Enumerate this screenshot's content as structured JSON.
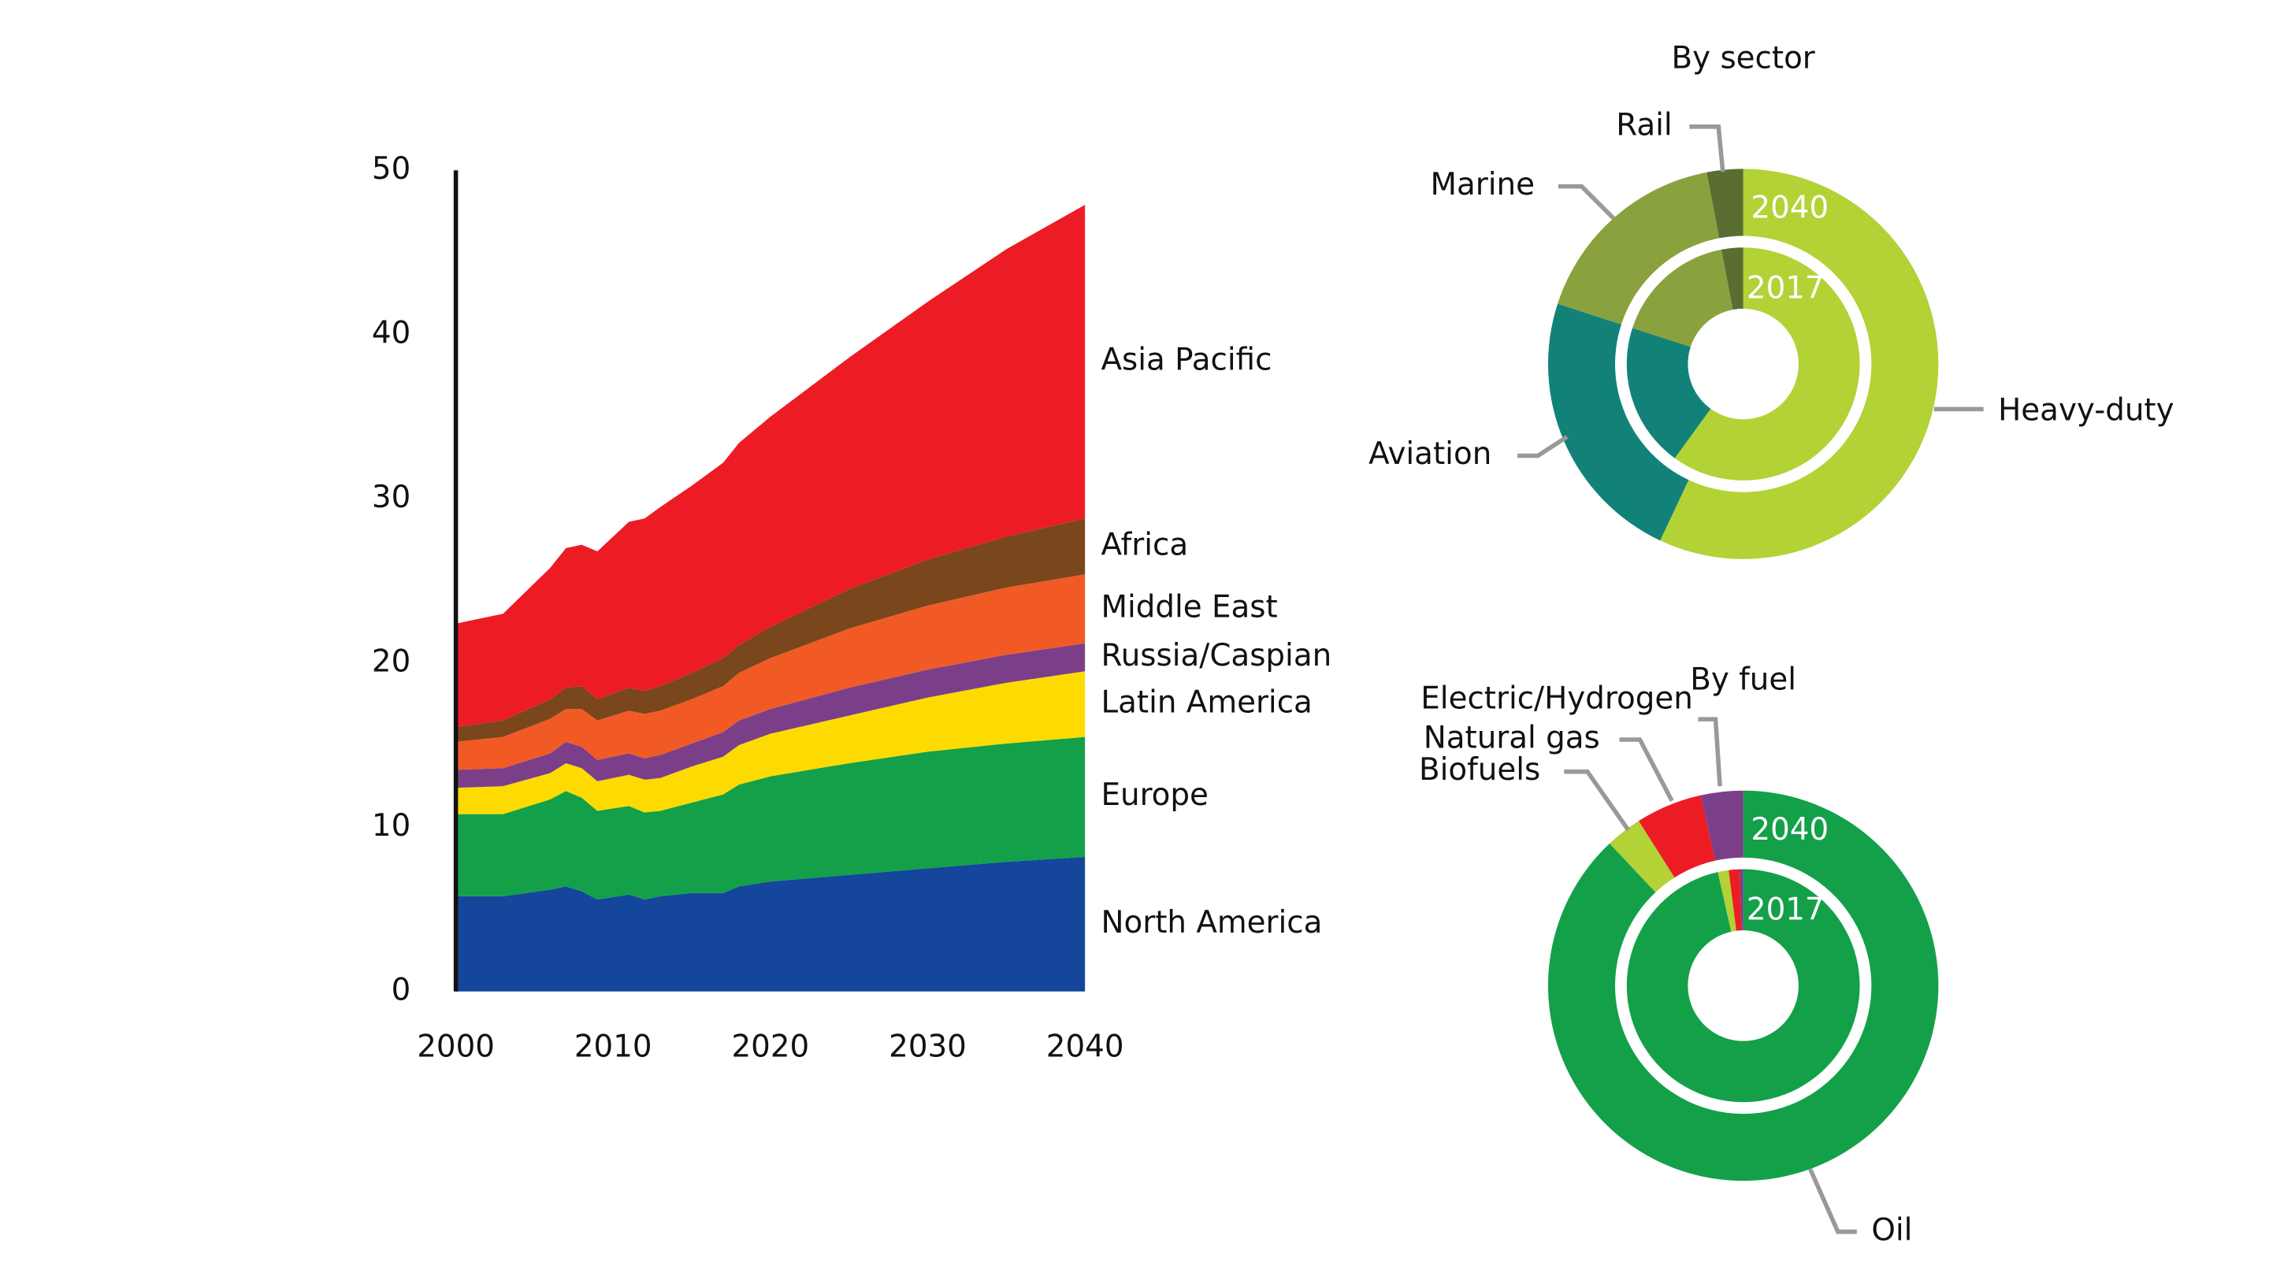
{
  "chart_data": [
    {
      "type": "stacked-area",
      "x": [
        2000,
        2003,
        2006,
        2007,
        2008,
        2009,
        2011,
        2012,
        2013,
        2015,
        2017,
        2018,
        2020,
        2025,
        2030,
        2035,
        2040
      ],
      "xlim": [
        2000,
        2040
      ],
      "xticks": [
        2000,
        2010,
        2020,
        2030,
        2040
      ],
      "ylim": [
        0,
        50
      ],
      "yticks": [
        0,
        10,
        20,
        30,
        40,
        50
      ],
      "series": [
        {
          "name": "North America",
          "color": "#14479b",
          "values": [
            5.8,
            5.8,
            6.2,
            6.4,
            6.1,
            5.6,
            5.9,
            5.6,
            5.8,
            6.0,
            6.0,
            6.4,
            6.7,
            7.1,
            7.5,
            7.9,
            8.2
          ]
        },
        {
          "name": "Europe",
          "color": "#13a049",
          "values": [
            5.0,
            5.0,
            5.5,
            5.8,
            5.7,
            5.4,
            5.4,
            5.3,
            5.2,
            5.5,
            6.0,
            6.2,
            6.4,
            6.8,
            7.1,
            7.2,
            7.3
          ]
        },
        {
          "name": "Latin America",
          "color": "#fddb00",
          "values": [
            1.6,
            1.7,
            1.6,
            1.7,
            1.8,
            1.8,
            1.9,
            2.0,
            2.0,
            2.2,
            2.3,
            2.4,
            2.6,
            2.9,
            3.3,
            3.7,
            4.0
          ]
        },
        {
          "name": "Russia/Caspian",
          "color": "#7b3f8a",
          "values": [
            1.1,
            1.1,
            1.2,
            1.3,
            1.3,
            1.3,
            1.3,
            1.3,
            1.4,
            1.4,
            1.5,
            1.5,
            1.5,
            1.7,
            1.7,
            1.7,
            1.7
          ]
        },
        {
          "name": "Middle East",
          "color": "#f15a24",
          "values": [
            1.7,
            1.9,
            2.1,
            2.0,
            2.3,
            2.4,
            2.6,
            2.7,
            2.7,
            2.7,
            2.8,
            2.9,
            3.1,
            3.6,
            3.9,
            4.1,
            4.2
          ]
        },
        {
          "name": "Africa",
          "color": "#7a461c",
          "values": [
            0.9,
            1.0,
            1.2,
            1.3,
            1.4,
            1.3,
            1.4,
            1.4,
            1.5,
            1.6,
            1.7,
            1.7,
            1.9,
            2.4,
            2.8,
            3.1,
            3.4
          ]
        },
        {
          "name": "Asia Pacific",
          "color": "#ed1c24",
          "values": [
            6.3,
            6.5,
            8.0,
            8.5,
            8.6,
            9.0,
            10.1,
            10.5,
            10.9,
            11.4,
            11.9,
            12.3,
            12.8,
            14.1,
            15.7,
            17.5,
            19.1
          ]
        }
      ]
    },
    {
      "type": "donut",
      "title": "By sector",
      "categories": [
        "Heavy-duty",
        "Aviation",
        "Marine",
        "Rail"
      ],
      "colors": [
        "#b2d235",
        "#128279",
        "#8aa23e",
        "#5a6e32"
      ],
      "series": [
        {
          "name": "2040",
          "values": [
            57,
            23,
            17,
            3
          ]
        },
        {
          "name": "2017",
          "values": [
            60,
            20,
            17,
            3
          ]
        }
      ]
    },
    {
      "type": "donut",
      "title": "By fuel",
      "categories": [
        "Oil",
        "Biofuels",
        "Natural gas",
        "Electric/Hydrogen"
      ],
      "colors": [
        "#13a049",
        "#b2d235",
        "#ed1c24",
        "#7b3f8a"
      ],
      "series": [
        {
          "name": "2040",
          "values": [
            88,
            3,
            5.5,
            3.5
          ]
        },
        {
          "name": "2017",
          "values": [
            96.5,
            1.5,
            1.5,
            0.5
          ]
        }
      ]
    }
  ]
}
